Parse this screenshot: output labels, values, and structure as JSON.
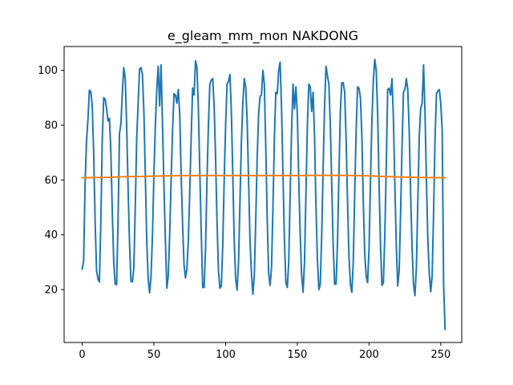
{
  "chart_data": {
    "type": "line",
    "title": "e_gleam_mm_mon NAKDONG",
    "xlabel": "",
    "ylabel": "",
    "xlim": [
      -12.6,
      264.6
    ],
    "ylim": [
      0.7,
      108.7
    ],
    "xticks": [
      0,
      50,
      100,
      150,
      200,
      250
    ],
    "yticks": [
      20,
      40,
      60,
      80,
      100
    ],
    "grid": false,
    "legend": "none",
    "series": [
      {
        "color": "#1f77b4",
        "points": [
          [
            0,
            27.5
          ],
          [
            1,
            30.5
          ],
          [
            2,
            58.0
          ],
          [
            3,
            74.0
          ],
          [
            4,
            82.0
          ],
          [
            5,
            92.8
          ],
          [
            6,
            92.3
          ],
          [
            7,
            87.0
          ],
          [
            8,
            70.0
          ],
          [
            9,
            45.0
          ],
          [
            10,
            27.0
          ],
          [
            11,
            23.8
          ],
          [
            12,
            22.8
          ],
          [
            13,
            45.0
          ],
          [
            14,
            75.0
          ],
          [
            15,
            90.0
          ],
          [
            16,
            89.5
          ],
          [
            17,
            86.0
          ],
          [
            18,
            81.5
          ],
          [
            19,
            82.5
          ],
          [
            20,
            70.0
          ],
          [
            21,
            48.0
          ],
          [
            22,
            30.0
          ],
          [
            23,
            22.0
          ],
          [
            24,
            21.8
          ],
          [
            25,
            45.0
          ],
          [
            26,
            77.0
          ],
          [
            27,
            80.5
          ],
          [
            28,
            92.0
          ],
          [
            29,
            101.0
          ],
          [
            30,
            97.0
          ],
          [
            31,
            80.0
          ],
          [
            32,
            57.0
          ],
          [
            33,
            37.0
          ],
          [
            34,
            23.0
          ],
          [
            35,
            22.8
          ],
          [
            36,
            28.0
          ],
          [
            37,
            50.0
          ],
          [
            38,
            75.0
          ],
          [
            39,
            88.0
          ],
          [
            40,
            100.5
          ],
          [
            41,
            101.0
          ],
          [
            42,
            98.5
          ],
          [
            43,
            85.0
          ],
          [
            44,
            62.0
          ],
          [
            45,
            38.0
          ],
          [
            46,
            24.0
          ],
          [
            47,
            18.8
          ],
          [
            48,
            25.0
          ],
          [
            49,
            40.0
          ],
          [
            50,
            62.0
          ],
          [
            51,
            80.0
          ],
          [
            52,
            93.0
          ],
          [
            53,
            101.5
          ],
          [
            54,
            87.0
          ],
          [
            55,
            102.0
          ],
          [
            56,
            80.0
          ],
          [
            57,
            58.0
          ],
          [
            58,
            38.0
          ],
          [
            59,
            20.5
          ],
          [
            60,
            25.0
          ],
          [
            61,
            40.0
          ],
          [
            62,
            60.0
          ],
          [
            63,
            78.0
          ],
          [
            64,
            91.5
          ],
          [
            65,
            91.0
          ],
          [
            66,
            88.0
          ],
          [
            67,
            93.0
          ],
          [
            68,
            84.0
          ],
          [
            69,
            62.0
          ],
          [
            70,
            44.0
          ],
          [
            71,
            29.0
          ],
          [
            72,
            24.3
          ],
          [
            73,
            27.5
          ],
          [
            74,
            38.0
          ],
          [
            75,
            56.0
          ],
          [
            76,
            76.0
          ],
          [
            77,
            93.5
          ],
          [
            78,
            91.0
          ],
          [
            79,
            103.5
          ],
          [
            80,
            101.0
          ],
          [
            81,
            86.0
          ],
          [
            82,
            63.0
          ],
          [
            83,
            41.0
          ],
          [
            84,
            20.8
          ],
          [
            85,
            20.8
          ],
          [
            86,
            35.0
          ],
          [
            87,
            60.0
          ],
          [
            88,
            80.0
          ],
          [
            89,
            95.0
          ],
          [
            90,
            96.5
          ],
          [
            91,
            97.0
          ],
          [
            92,
            87.0
          ],
          [
            93,
            68.0
          ],
          [
            94,
            45.0
          ],
          [
            95,
            27.0
          ],
          [
            96,
            20.5
          ],
          [
            97,
            21.2
          ],
          [
            98,
            36.0
          ],
          [
            99,
            60.0
          ],
          [
            100,
            80.0
          ],
          [
            101,
            95.0
          ],
          [
            102,
            96.0
          ],
          [
            103,
            98.5
          ],
          [
            104,
            85.0
          ],
          [
            105,
            62.0
          ],
          [
            106,
            38.0
          ],
          [
            107,
            24.0
          ],
          [
            108,
            19.8
          ],
          [
            109,
            30.0
          ],
          [
            110,
            52.0
          ],
          [
            111,
            74.0
          ],
          [
            112,
            88.0
          ],
          [
            113,
            97.0
          ],
          [
            114,
            94.0
          ],
          [
            115,
            82.0
          ],
          [
            116,
            60.0
          ],
          [
            117,
            38.0
          ],
          [
            118,
            26.0
          ],
          [
            119,
            18.3
          ],
          [
            120,
            25.0
          ],
          [
            121,
            45.0
          ],
          [
            122,
            68.0
          ],
          [
            123,
            84.0
          ],
          [
            124,
            90.5
          ],
          [
            125,
            91.0
          ],
          [
            126,
            100.0
          ],
          [
            127,
            95.0
          ],
          [
            128,
            72.0
          ],
          [
            129,
            46.0
          ],
          [
            130,
            26.0
          ],
          [
            131,
            21.5
          ],
          [
            132,
            28.0
          ],
          [
            133,
            50.0
          ],
          [
            134,
            75.0
          ],
          [
            135,
            92.0
          ],
          [
            136,
            91.5
          ],
          [
            137,
            100.0
          ],
          [
            138,
            103.0
          ],
          [
            139,
            86.0
          ],
          [
            140,
            62.0
          ],
          [
            141,
            38.0
          ],
          [
            142,
            22.5
          ],
          [
            143,
            20.8
          ],
          [
            144,
            30.0
          ],
          [
            145,
            55.0
          ],
          [
            146,
            78.0
          ],
          [
            147,
            95.0
          ],
          [
            148,
            86.0
          ],
          [
            149,
            94.0
          ],
          [
            150,
            84.0
          ],
          [
            151,
            60.0
          ],
          [
            152,
            40.0
          ],
          [
            153,
            25.0
          ],
          [
            154,
            19.0
          ],
          [
            155,
            30.0
          ],
          [
            156,
            55.0
          ],
          [
            157,
            80.0
          ],
          [
            158,
            95.0
          ],
          [
            159,
            94.0
          ],
          [
            160,
            85.0
          ],
          [
            161,
            92.0
          ],
          [
            162,
            76.0
          ],
          [
            163,
            50.0
          ],
          [
            164,
            31.0
          ],
          [
            165,
            20.0
          ],
          [
            166,
            22.0
          ],
          [
            167,
            40.0
          ],
          [
            168,
            65.0
          ],
          [
            169,
            87.0
          ],
          [
            170,
            101.5
          ],
          [
            171,
            98.0
          ],
          [
            172,
            95.0
          ],
          [
            173,
            80.0
          ],
          [
            174,
            58.0
          ],
          [
            175,
            36.0
          ],
          [
            176,
            22.0
          ],
          [
            177,
            22.0
          ],
          [
            178,
            37.0
          ],
          [
            179,
            62.0
          ],
          [
            180,
            85.0
          ],
          [
            181,
            95.5
          ],
          [
            182,
            95.5
          ],
          [
            183,
            92.0
          ],
          [
            184,
            75.0
          ],
          [
            185,
            52.0
          ],
          [
            186,
            32.0
          ],
          [
            187,
            22.0
          ],
          [
            188,
            19.0
          ],
          [
            189,
            30.0
          ],
          [
            190,
            55.0
          ],
          [
            191,
            78.0
          ],
          [
            192,
            94.0
          ],
          [
            193,
            93.5
          ],
          [
            194,
            90.0
          ],
          [
            195,
            76.0
          ],
          [
            196,
            52.0
          ],
          [
            197,
            33.0
          ],
          [
            198,
            25.0
          ],
          [
            199,
            22.5
          ],
          [
            200,
            35.0
          ],
          [
            201,
            60.0
          ],
          [
            202,
            82.0
          ],
          [
            203,
            96.5
          ],
          [
            204,
            104.0
          ],
          [
            205,
            100.0
          ],
          [
            206,
            84.0
          ],
          [
            207,
            58.0
          ],
          [
            208,
            36.0
          ],
          [
            209,
            21.5
          ],
          [
            210,
            22.5
          ],
          [
            211,
            40.0
          ],
          [
            212,
            65.0
          ],
          [
            213,
            93.0
          ],
          [
            214,
            93.5
          ],
          [
            215,
            91.0
          ],
          [
            216,
            97.0
          ],
          [
            217,
            82.0
          ],
          [
            218,
            58.0
          ],
          [
            219,
            36.0
          ],
          [
            220,
            21.3
          ],
          [
            221,
            27.0
          ],
          [
            222,
            48.0
          ],
          [
            223,
            72.0
          ],
          [
            224,
            92.0
          ],
          [
            225,
            93.0
          ],
          [
            226,
            97.0
          ],
          [
            227,
            93.0
          ],
          [
            228,
            78.0
          ],
          [
            229,
            55.0
          ],
          [
            230,
            35.0
          ],
          [
            231,
            22.0
          ],
          [
            232,
            17.8
          ],
          [
            233,
            28.0
          ],
          [
            234,
            52.0
          ],
          [
            235,
            76.0
          ],
          [
            236,
            86.0
          ],
          [
            237,
            88.0
          ],
          [
            238,
            102.0
          ],
          [
            239,
            85.0
          ],
          [
            240,
            60.0
          ],
          [
            241,
            38.0
          ],
          [
            242,
            26.0
          ],
          [
            243,
            19.2
          ],
          [
            244,
            25.0
          ],
          [
            245,
            48.0
          ],
          [
            246,
            75.0
          ],
          [
            247,
            91.5
          ],
          [
            248,
            92.5
          ],
          [
            249,
            93.0
          ],
          [
            250,
            88.0
          ],
          [
            251,
            78.0
          ],
          [
            252,
            21.5
          ],
          [
            253,
            5.5
          ]
        ]
      },
      {
        "color": "#ff7f0e",
        "points": [
          [
            0,
            60.8
          ],
          [
            10,
            60.9
          ],
          [
            20,
            61.0
          ],
          [
            30,
            61.2
          ],
          [
            40,
            61.3
          ],
          [
            50,
            61.4
          ],
          [
            60,
            61.5
          ],
          [
            70,
            61.6
          ],
          [
            80,
            61.6
          ],
          [
            90,
            61.6
          ],
          [
            100,
            61.6
          ],
          [
            110,
            61.6
          ],
          [
            120,
            61.6
          ],
          [
            130,
            61.6
          ],
          [
            140,
            61.6
          ],
          [
            150,
            61.6
          ],
          [
            160,
            61.7
          ],
          [
            170,
            61.7
          ],
          [
            180,
            61.7
          ],
          [
            190,
            61.6
          ],
          [
            200,
            61.5
          ],
          [
            210,
            61.3
          ],
          [
            220,
            61.1
          ],
          [
            230,
            61.0
          ],
          [
            240,
            60.9
          ],
          [
            253,
            60.8
          ]
        ]
      }
    ]
  }
}
